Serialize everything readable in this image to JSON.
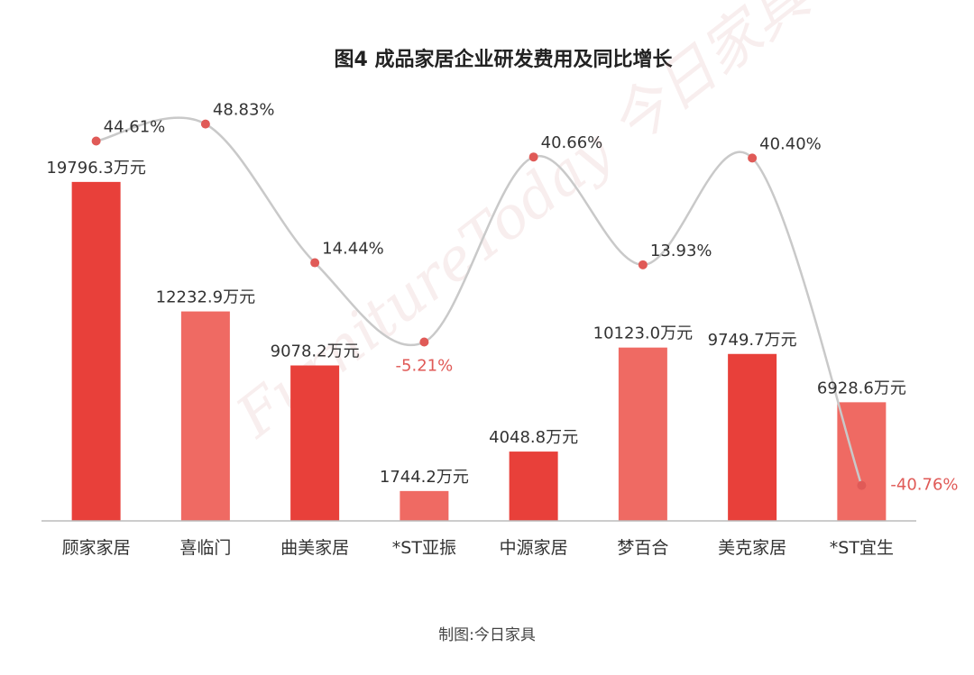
{
  "title": "图4  成品家居企业研发费用及同比增长",
  "source": "制图:今日家具",
  "watermark": "FurnitureToday 今日家具",
  "colors": {
    "bar_dark": "#e8403a",
    "bar_light": "#ef6a63",
    "line": "#c9c9c9",
    "point": "#e05a57",
    "positive_label": "#333333",
    "negative_label": "#e05a57",
    "axis": "#bbbbbb"
  },
  "chart_data": {
    "type": "bar",
    "categories": [
      "顾家家居",
      "喜临门",
      "曲美家居",
      "*ST亚振",
      "中源家居",
      "梦百合",
      "美克家居",
      "*ST宜生"
    ],
    "series": [
      {
        "type": "bar",
        "values": [
          19796.3,
          12232.9,
          9078.2,
          1744.2,
          4048.8,
          10123.0,
          9749.7,
          6928.6
        ],
        "labels": [
          "19796.3万元",
          "12232.9万元",
          "9078.2万元",
          "1744.2万元",
          "4048.8万元",
          "10123.0万元",
          "9749.7万元",
          "6928.6万元"
        ],
        "unit": "万元"
      },
      {
        "type": "line",
        "values": [
          44.61,
          48.83,
          14.44,
          -5.21,
          40.66,
          13.93,
          40.4,
          -40.76
        ],
        "labels": [
          "44.61%",
          "48.83%",
          "14.44%",
          "-5.21%",
          "40.66%",
          "13.93%",
          "40.40%",
          "-40.76%"
        ],
        "unit": "%"
      }
    ],
    "ylim_bar": [
      0,
      20000
    ],
    "ylim_line": [
      -50,
      55
    ],
    "grid": false,
    "legend": "none"
  }
}
